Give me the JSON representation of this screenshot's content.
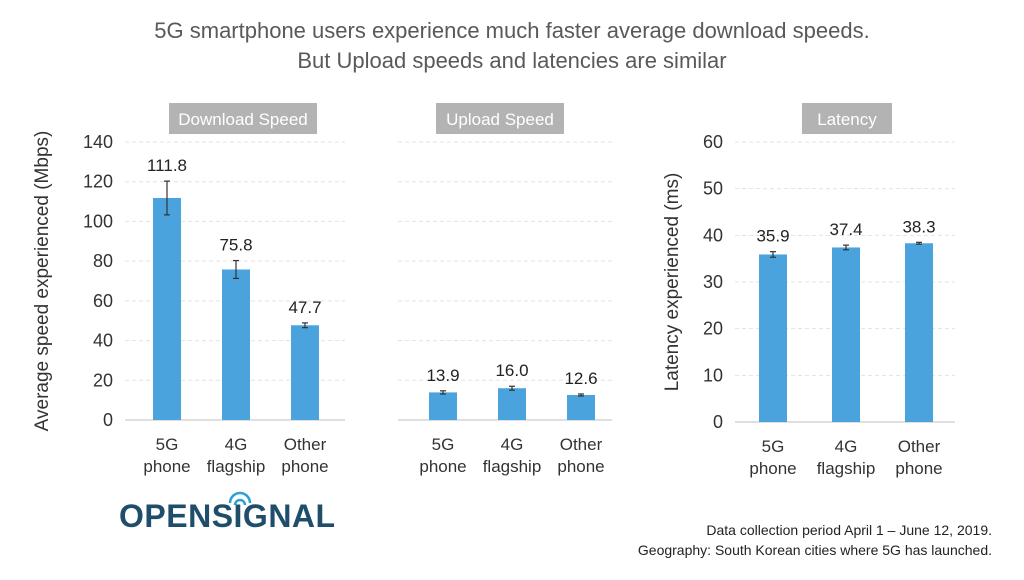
{
  "title": "5G smartphone users experience much faster average download speeds.",
  "subtitle": "But Upload speeds and latencies are similar",
  "logo_text": "OPENSIGNAL",
  "footnotes": [
    "Data collection period April 1 – June 12, 2019.",
    "Geography: South Korean cities where 5G has launched."
  ],
  "colors": {
    "bar": "#4aa3dc",
    "label_bg": "#b3b3b3",
    "logo": "#1f4e6b",
    "logo_accent": "#2aa0d8"
  },
  "chart_data": [
    {
      "type": "bar",
      "panel_label": "Download Speed",
      "ylabel": "Average speed experienced (Mbps)",
      "ylim": [
        0,
        140
      ],
      "yticks": [
        0,
        20,
        40,
        60,
        80,
        100,
        120,
        140
      ],
      "grid": true,
      "categories": [
        [
          "5G",
          "phone"
        ],
        [
          "4G",
          "flagship"
        ],
        [
          "Other",
          "phone"
        ]
      ],
      "values": [
        111.8,
        75.8,
        47.7
      ],
      "value_labels": [
        "111.8",
        "75.8",
        "47.7"
      ],
      "error": [
        8.5,
        4.5,
        1.2
      ]
    },
    {
      "type": "bar",
      "panel_label": "Upload Speed",
      "ylim": [
        0,
        140
      ],
      "grid": true,
      "categories": [
        [
          "5G",
          "phone"
        ],
        [
          "4G",
          "flagship"
        ],
        [
          "Other",
          "phone"
        ]
      ],
      "values": [
        13.9,
        16.0,
        12.6
      ],
      "value_labels": [
        "13.9",
        "16.0",
        "12.6"
      ],
      "error": [
        0.8,
        1.0,
        0.5
      ]
    },
    {
      "type": "bar",
      "panel_label": "Latency",
      "ylabel": "Latency experienced (ms)",
      "ylim": [
        0,
        60
      ],
      "yticks": [
        0,
        10,
        20,
        30,
        40,
        50,
        60
      ],
      "grid": true,
      "categories": [
        [
          "5G",
          "phone"
        ],
        [
          "4G",
          "flagship"
        ],
        [
          "Other",
          "phone"
        ]
      ],
      "values": [
        35.9,
        37.4,
        38.3
      ],
      "value_labels": [
        "35.9",
        "37.4",
        "38.3"
      ],
      "error": [
        0.6,
        0.5,
        0.2
      ]
    }
  ]
}
